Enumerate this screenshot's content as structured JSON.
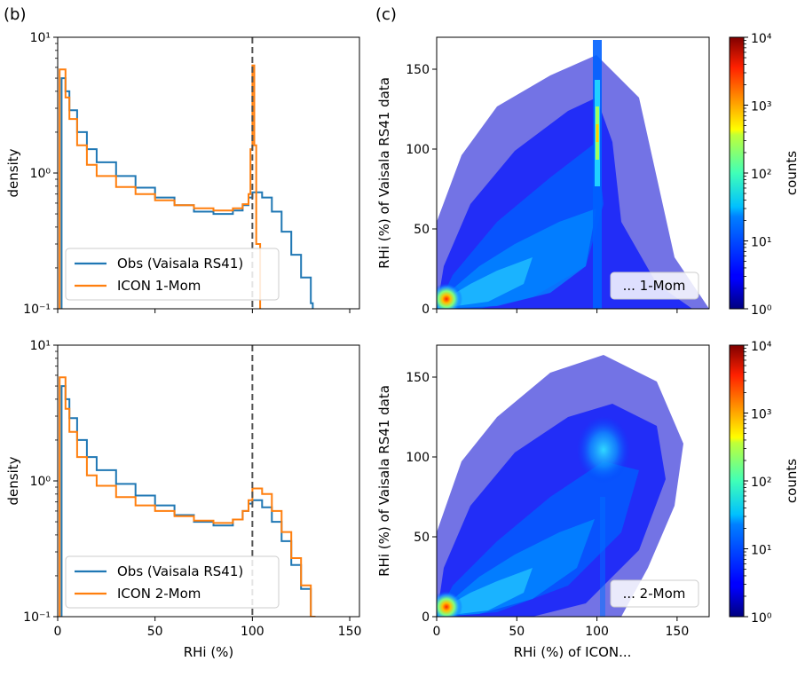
{
  "figure": {
    "panel_b_label": "(b)",
    "panel_c_label": "(c)"
  },
  "chart_data": [
    {
      "id": "hist-top",
      "type": "line",
      "style": "step",
      "ylabel": "density",
      "xlabel": "",
      "xlim": [
        0,
        155
      ],
      "ylim_log10": [
        -1,
        1
      ],
      "xticks": [
        0,
        50,
        100,
        150
      ],
      "xtick_labels": [
        "",
        "",
        "",
        ""
      ],
      "ytick_labels": [
        "10¹",
        "10⁰",
        "10⁻¹"
      ],
      "ytick_values_log10": [
        1,
        0,
        -1
      ],
      "vline": {
        "x": 100,
        "style": "dashed",
        "color": "#555555"
      },
      "legend": {
        "placement": "lower-left"
      },
      "series": [
        {
          "name": "Obs (Vaisala RS41)",
          "color": "#1f77b4",
          "x": [
            0,
            2,
            4,
            6,
            10,
            15,
            20,
            30,
            40,
            50,
            60,
            70,
            80,
            90,
            95,
            98,
            100,
            102,
            105,
            110,
            115,
            120,
            125,
            130,
            131
          ],
          "y": [
            0.08,
            5.0,
            4.0,
            2.9,
            2.0,
            1.5,
            1.2,
            0.95,
            0.78,
            0.66,
            0.58,
            0.52,
            0.5,
            0.53,
            0.58,
            0.66,
            0.72,
            0.72,
            0.66,
            0.52,
            0.37,
            0.25,
            0.17,
            0.11,
            0.08
          ]
        },
        {
          "name": "ICON 1-Mom",
          "color": "#ff7f0e",
          "x": [
            1,
            2,
            4,
            6,
            10,
            15,
            20,
            30,
            40,
            50,
            60,
            70,
            80,
            90,
            95,
            98,
            99,
            100,
            101,
            102,
            104
          ],
          "y": [
            5.8,
            5.8,
            3.6,
            2.5,
            1.6,
            1.15,
            0.95,
            0.79,
            0.7,
            0.63,
            0.58,
            0.55,
            0.53,
            0.55,
            0.59,
            0.7,
            1.5,
            6.2,
            1.6,
            0.3,
            0.08
          ]
        }
      ]
    },
    {
      "id": "hist-bottom",
      "type": "line",
      "style": "step",
      "ylabel": "density",
      "xlabel": "RHi (%)",
      "xlim": [
        0,
        155
      ],
      "ylim_log10": [
        -1,
        1
      ],
      "xticks": [
        0,
        50,
        100,
        150
      ],
      "xtick_labels": [
        "0",
        "50",
        "100",
        "150"
      ],
      "ytick_labels": [
        "10¹",
        "10⁰",
        "10⁻¹"
      ],
      "ytick_values_log10": [
        1,
        0,
        -1
      ],
      "vline": {
        "x": 100,
        "style": "dashed",
        "color": "#555555"
      },
      "legend": {
        "placement": "lower-left"
      },
      "series": [
        {
          "name": "Obs (Vaisala RS41)",
          "color": "#1f77b4",
          "x": [
            0,
            2,
            4,
            6,
            10,
            15,
            20,
            30,
            40,
            50,
            60,
            70,
            80,
            90,
            95,
            98,
            100,
            102,
            105,
            110,
            115,
            120,
            125,
            130,
            131
          ],
          "y": [
            0.08,
            5.0,
            4.0,
            2.9,
            2.0,
            1.5,
            1.2,
            0.95,
            0.78,
            0.66,
            0.56,
            0.5,
            0.47,
            0.52,
            0.6,
            0.68,
            0.72,
            0.72,
            0.64,
            0.5,
            0.36,
            0.24,
            0.16,
            0.1,
            0.08
          ]
        },
        {
          "name": "ICON 2-Mom",
          "color": "#ff7f0e",
          "x": [
            1,
            2,
            4,
            6,
            10,
            15,
            20,
            30,
            40,
            50,
            60,
            70,
            80,
            90,
            95,
            98,
            100,
            102,
            105,
            110,
            115,
            120,
            125,
            130,
            132
          ],
          "y": [
            5.8,
            5.8,
            3.4,
            2.3,
            1.5,
            1.1,
            0.92,
            0.76,
            0.66,
            0.6,
            0.55,
            0.51,
            0.49,
            0.52,
            0.6,
            0.72,
            0.88,
            0.88,
            0.8,
            0.6,
            0.42,
            0.27,
            0.17,
            0.1,
            0.08
          ]
        }
      ]
    },
    {
      "id": "scatter-top",
      "type": "heatmap",
      "xlabel": "",
      "ylabel": "RHi (%) of Vaisala RS41 data",
      "xlim": [
        0,
        170
      ],
      "ylim": [
        0,
        170
      ],
      "xticks": [
        0,
        50,
        100,
        150
      ],
      "xtick_labels": [
        "",
        "",
        "",
        ""
      ],
      "yticks": [
        0,
        50,
        100,
        150
      ],
      "ytick_labels": [
        "0",
        "50",
        "100",
        "150"
      ],
      "annotation": "... 1-Mom",
      "colorbar": {
        "label": "counts",
        "scale": "log",
        "range_log10": [
          0,
          4
        ],
        "tick_labels": [
          "10⁰",
          "10¹",
          "10²",
          "10³",
          "10⁴"
        ]
      }
    },
    {
      "id": "scatter-bottom",
      "type": "heatmap",
      "xlabel": "RHi (%) of ICON...",
      "ylabel": "RHi (%) of Vaisala RS41 data",
      "xlim": [
        0,
        170
      ],
      "ylim": [
        0,
        170
      ],
      "xticks": [
        0,
        50,
        100,
        150
      ],
      "xtick_labels": [
        "0",
        "50",
        "100",
        "150"
      ],
      "yticks": [
        0,
        50,
        100,
        150
      ],
      "ytick_labels": [
        "0",
        "50",
        "100",
        "150"
      ],
      "annotation": "... 2-Mom",
      "colorbar": {
        "label": "counts",
        "scale": "log",
        "range_log10": [
          0,
          4
        ],
        "tick_labels": [
          "10⁰",
          "10¹",
          "10²",
          "10³",
          "10⁴"
        ]
      }
    }
  ],
  "colors": {
    "obs": "#1f77b4",
    "icon": "#ff7f0e",
    "vline": "#555555",
    "jet_low": "#00007f",
    "jet_high": "#7f0000"
  }
}
